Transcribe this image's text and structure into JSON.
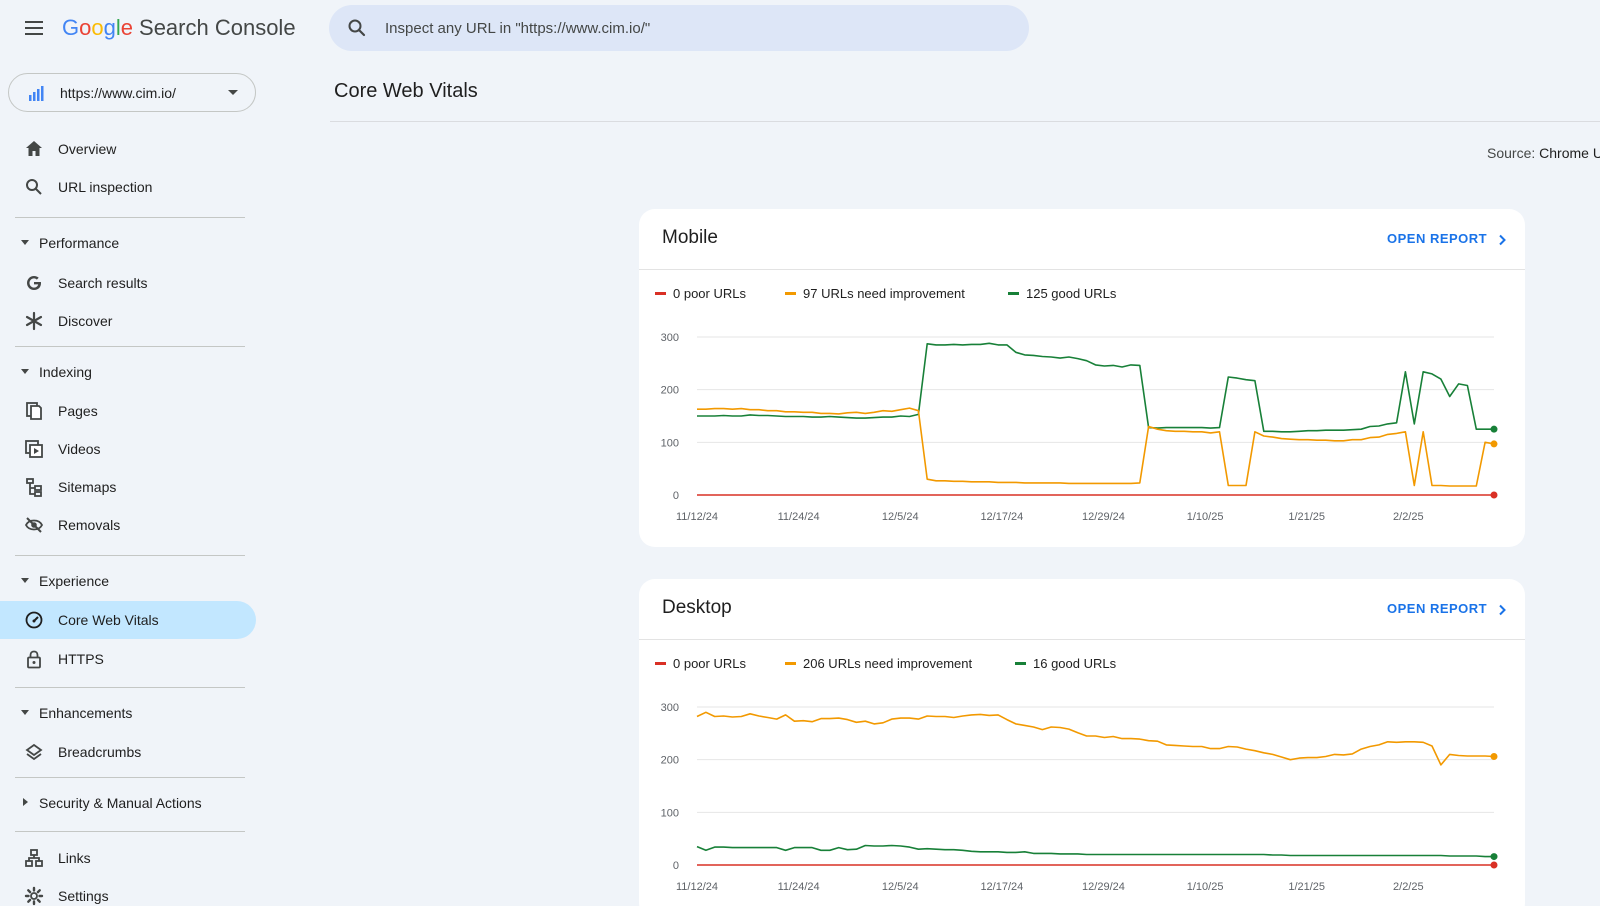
{
  "app": {
    "logo_letters": [
      "G",
      "o",
      "o",
      "g",
      "l",
      "e"
    ],
    "product": "Search Console"
  },
  "search": {
    "placeholder": "Inspect any URL in \"https://www.cim.io/\""
  },
  "property": {
    "url": "https://www.cim.io/"
  },
  "sidebar": {
    "top_items": [
      {
        "label": "Overview",
        "icon": "home-icon"
      },
      {
        "label": "URL inspection",
        "icon": "search-icon"
      }
    ],
    "sections": [
      {
        "label": "Performance",
        "expanded": true,
        "items": [
          {
            "label": "Search results",
            "icon": "google-g-icon"
          },
          {
            "label": "Discover",
            "icon": "asterisk-icon"
          }
        ]
      },
      {
        "label": "Indexing",
        "expanded": true,
        "items": [
          {
            "label": "Pages",
            "icon": "pages-icon"
          },
          {
            "label": "Videos",
            "icon": "videos-icon"
          },
          {
            "label": "Sitemaps",
            "icon": "sitemaps-icon"
          },
          {
            "label": "Removals",
            "icon": "removals-icon"
          }
        ]
      },
      {
        "label": "Experience",
        "expanded": true,
        "items": [
          {
            "label": "Core Web Vitals",
            "icon": "gauge-icon",
            "active": true
          },
          {
            "label": "HTTPS",
            "icon": "lock-icon"
          }
        ]
      },
      {
        "label": "Enhancements",
        "expanded": true,
        "items": [
          {
            "label": "Breadcrumbs",
            "icon": "layers-icon"
          }
        ]
      },
      {
        "label": "Security & Manual Actions",
        "expanded": false,
        "items": []
      }
    ],
    "bottom_items": [
      {
        "label": "Links",
        "icon": "links-icon"
      },
      {
        "label": "Settings",
        "icon": "gear-icon"
      }
    ]
  },
  "main": {
    "title": "Core Web Vitals",
    "source_label": "Source:",
    "source_value": "Chrome U"
  },
  "colors": {
    "poor": "#d93025",
    "needs_improvement": "#f29900",
    "good": "#188038",
    "active_nav": "#c2e7ff",
    "link": "#1a73e8"
  },
  "chart_data": [
    {
      "type": "line",
      "title": "Mobile",
      "action": "OPEN REPORT",
      "x_tick_labels": [
        "11/12/24",
        "11/24/24",
        "12/5/24",
        "12/17/24",
        "12/29/24",
        "1/10/25",
        "1/21/25",
        "2/2/25"
      ],
      "ylim": [
        0,
        300
      ],
      "y_ticks": [
        0,
        100,
        200,
        300
      ],
      "grid": true,
      "legend_position": "top-left",
      "series": [
        {
          "name": "0 poor URLs",
          "color": "#d93025",
          "values": [
            0,
            0,
            0,
            0,
            0,
            0,
            0,
            0,
            0,
            0,
            0,
            0,
            0,
            0,
            0,
            0,
            0,
            0,
            0,
            0,
            0,
            0,
            0,
            0,
            0,
            0,
            0,
            0,
            0,
            0,
            0,
            0,
            0,
            0,
            0,
            0,
            0,
            0,
            0,
            0,
            0,
            0,
            0,
            0,
            0,
            0,
            0,
            0,
            0,
            0,
            0,
            0,
            0,
            0,
            0,
            0,
            0,
            0,
            0,
            0,
            0,
            0,
            0,
            0,
            0,
            0,
            0,
            0,
            0,
            0,
            0,
            0,
            0,
            0,
            0,
            0,
            0,
            0,
            0,
            0,
            0,
            0,
            0,
            0,
            0,
            0,
            0,
            0,
            0,
            0,
            0
          ]
        },
        {
          "name": "97 URLs need improvement",
          "color": "#f29900",
          "values": [
            163,
            163,
            164,
            164,
            163,
            164,
            162,
            162,
            160,
            160,
            158,
            158,
            157,
            157,
            155,
            155,
            154,
            156,
            157,
            155,
            157,
            160,
            159,
            162,
            165,
            160,
            30,
            27,
            27,
            26,
            26,
            25,
            25,
            25,
            24,
            24,
            24,
            23,
            23,
            23,
            23,
            23,
            22,
            22,
            22,
            22,
            22,
            22,
            22,
            22,
            23,
            130,
            125,
            122,
            121,
            121,
            120,
            120,
            118,
            120,
            18,
            18,
            18,
            120,
            112,
            110,
            107,
            106,
            105,
            105,
            104,
            104,
            103,
            103,
            105,
            105,
            109,
            110,
            115,
            117,
            120,
            18,
            120,
            18,
            18,
            17,
            17,
            17,
            17,
            100,
            97
          ]
        },
        {
          "name": "125 good URLs",
          "color": "#188038",
          "values": [
            150,
            150,
            150,
            151,
            150,
            150,
            152,
            151,
            151,
            150,
            149,
            149,
            149,
            148,
            148,
            149,
            148,
            147,
            146,
            146,
            147,
            148,
            148,
            150,
            149,
            153,
            287,
            285,
            285,
            286,
            285,
            286,
            286,
            288,
            285,
            285,
            271,
            266,
            265,
            263,
            262,
            260,
            262,
            259,
            255,
            247,
            245,
            246,
            243,
            247,
            246,
            128,
            127,
            128,
            128,
            128,
            128,
            128,
            127,
            128,
            224,
            222,
            219,
            217,
            121,
            121,
            120,
            120,
            121,
            122,
            122,
            123,
            123,
            123,
            124,
            125,
            130,
            131,
            135,
            137,
            234,
            135,
            234,
            230,
            220,
            187,
            211,
            208,
            125,
            125,
            125
          ]
        }
      ]
    },
    {
      "type": "line",
      "title": "Desktop",
      "action": "OPEN REPORT",
      "x_tick_labels": [
        "11/12/24",
        "11/24/24",
        "12/5/24",
        "12/17/24",
        "12/29/24",
        "1/10/25",
        "1/21/25",
        "2/2/25"
      ],
      "ylim": [
        0,
        300
      ],
      "y_ticks": [
        0,
        100,
        200,
        300
      ],
      "grid": true,
      "legend_position": "top-left",
      "series": [
        {
          "name": "0 poor URLs",
          "color": "#d93025",
          "values": [
            0,
            0,
            0,
            0,
            0,
            0,
            0,
            0,
            0,
            0,
            0,
            0,
            0,
            0,
            0,
            0,
            0,
            0,
            0,
            0,
            0,
            0,
            0,
            0,
            0,
            0,
            0,
            0,
            0,
            0,
            0,
            0,
            0,
            0,
            0,
            0,
            0,
            0,
            0,
            0,
            0,
            0,
            0,
            0,
            0,
            0,
            0,
            0,
            0,
            0,
            0,
            0,
            0,
            0,
            0,
            0,
            0,
            0,
            0,
            0,
            0,
            0,
            0,
            0,
            0,
            0,
            0,
            0,
            0,
            0,
            0,
            0,
            0,
            0,
            0,
            0,
            0,
            0,
            0,
            0,
            0,
            0,
            0,
            0,
            0,
            0,
            0,
            0,
            0,
            0,
            0
          ]
        },
        {
          "name": "206 URLs need improvement",
          "color": "#f29900",
          "values": [
            282,
            290,
            282,
            283,
            281,
            282,
            287,
            283,
            280,
            277,
            285,
            273,
            274,
            272,
            278,
            278,
            279,
            276,
            271,
            273,
            268,
            270,
            277,
            279,
            279,
            277,
            283,
            282,
            282,
            280,
            283,
            285,
            286,
            284,
            285,
            276,
            268,
            265,
            262,
            257,
            262,
            261,
            258,
            251,
            245,
            245,
            242,
            244,
            240,
            240,
            239,
            236,
            235,
            228,
            227,
            226,
            225,
            225,
            221,
            221,
            225,
            224,
            220,
            217,
            213,
            210,
            205,
            200,
            203,
            204,
            204,
            206,
            210,
            209,
            211,
            220,
            225,
            228,
            234,
            233,
            234,
            234,
            233,
            226,
            190,
            210,
            208,
            207,
            207,
            207,
            206
          ]
        },
        {
          "name": "16 good URLs",
          "color": "#188038",
          "values": [
            35,
            28,
            34,
            34,
            33,
            33,
            33,
            33,
            33,
            33,
            28,
            33,
            33,
            33,
            28,
            28,
            33,
            29,
            30,
            37,
            36,
            36,
            37,
            36,
            34,
            30,
            31,
            30,
            29,
            29,
            28,
            26,
            25,
            25,
            25,
            24,
            24,
            25,
            22,
            22,
            22,
            21,
            21,
            21,
            20,
            20,
            20,
            20,
            20,
            20,
            20,
            20,
            20,
            20,
            20,
            20,
            20,
            20,
            20,
            20,
            20,
            20,
            20,
            20,
            20,
            19,
            19,
            18,
            18,
            18,
            18,
            18,
            18,
            18,
            18,
            18,
            18,
            18,
            18,
            18,
            18,
            18,
            18,
            18,
            18,
            17,
            17,
            17,
            17,
            16,
            16
          ]
        }
      ]
    }
  ]
}
